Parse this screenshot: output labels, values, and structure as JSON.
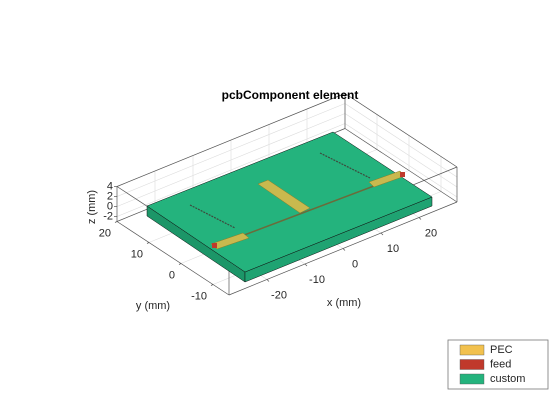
{
  "chart_data": {
    "type": "pcb3d",
    "title": "pcbComponent element",
    "xlabel": "x (mm)",
    "ylabel": "y (mm)",
    "zlabel": "z (mm)",
    "xlim": [
      -30,
      30
    ],
    "ylim": [
      -15,
      20
    ],
    "zlim": [
      -3,
      4
    ],
    "xticks": [
      -20,
      -10,
      0,
      10,
      20
    ],
    "yticks": [
      -10,
      0,
      10,
      20
    ],
    "zticks": [
      -2,
      0,
      2,
      4
    ],
    "grid": true,
    "legend": "southeast",
    "series": [
      {
        "name": "PEC",
        "color": "#f2c14e"
      },
      {
        "name": "feed",
        "color": "#c0392b"
      },
      {
        "name": "custom",
        "color": "#24b37d"
      }
    ]
  }
}
